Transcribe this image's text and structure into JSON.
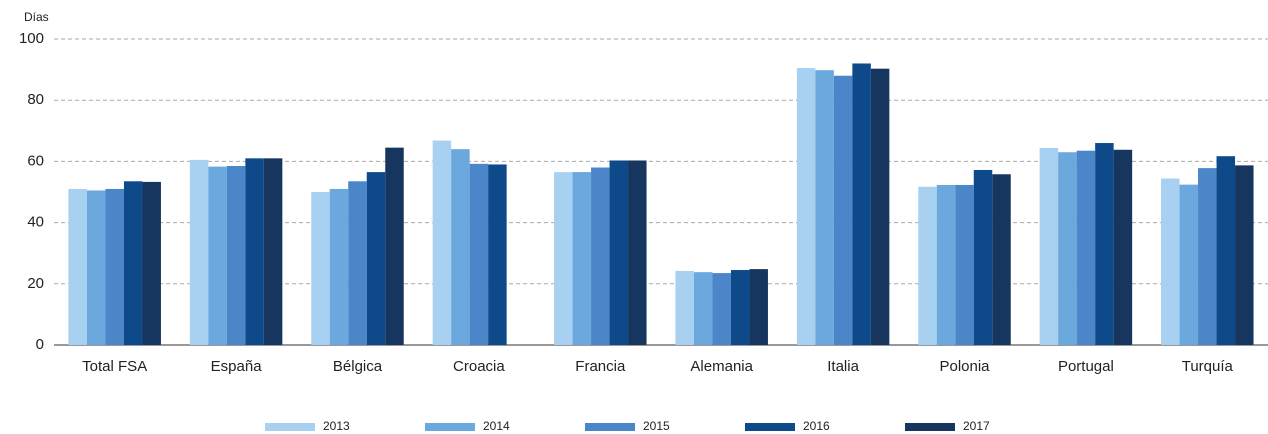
{
  "chart_data": {
    "type": "bar",
    "y_label": "Días",
    "categories": [
      "Total FSA",
      "España",
      "Bélgica",
      "Croacia",
      "Francia",
      "Alemania",
      "Italia",
      "Polonia",
      "Portugal",
      "Turquía"
    ],
    "series": [
      {
        "name": "2013",
        "color": "#a8d0f0",
        "values": [
          51,
          60.5,
          50,
          66.8,
          56.5,
          24.2,
          90.5,
          51.7,
          64.4,
          54.4
        ]
      },
      {
        "name": "2014",
        "color": "#6aa8de",
        "values": [
          50.5,
          58.3,
          51,
          64,
          56.5,
          23.8,
          89.8,
          52.3,
          63,
          52.4
        ]
      },
      {
        "name": "2015",
        "color": "#4a86c8",
        "values": [
          51,
          58.5,
          53.5,
          59.2,
          58,
          23.5,
          88,
          52.3,
          63.5,
          57.8
        ]
      },
      {
        "name": "2016",
        "color": "#0e4a8a",
        "values": [
          53.5,
          61,
          56.5,
          59,
          60.3,
          24.5,
          92,
          57.2,
          66,
          61.7
        ]
      },
      {
        "name": "2017",
        "color": "#17365f",
        "values": [
          53.3,
          61,
          64.5,
          null,
          60.3,
          24.8,
          90.3,
          55.8,
          63.8,
          58.7
        ]
      }
    ],
    "ylim": [
      0,
      100
    ],
    "yticks": [
      0,
      20,
      40,
      60,
      80,
      100
    ],
    "grid": true,
    "legend": "bottom"
  }
}
